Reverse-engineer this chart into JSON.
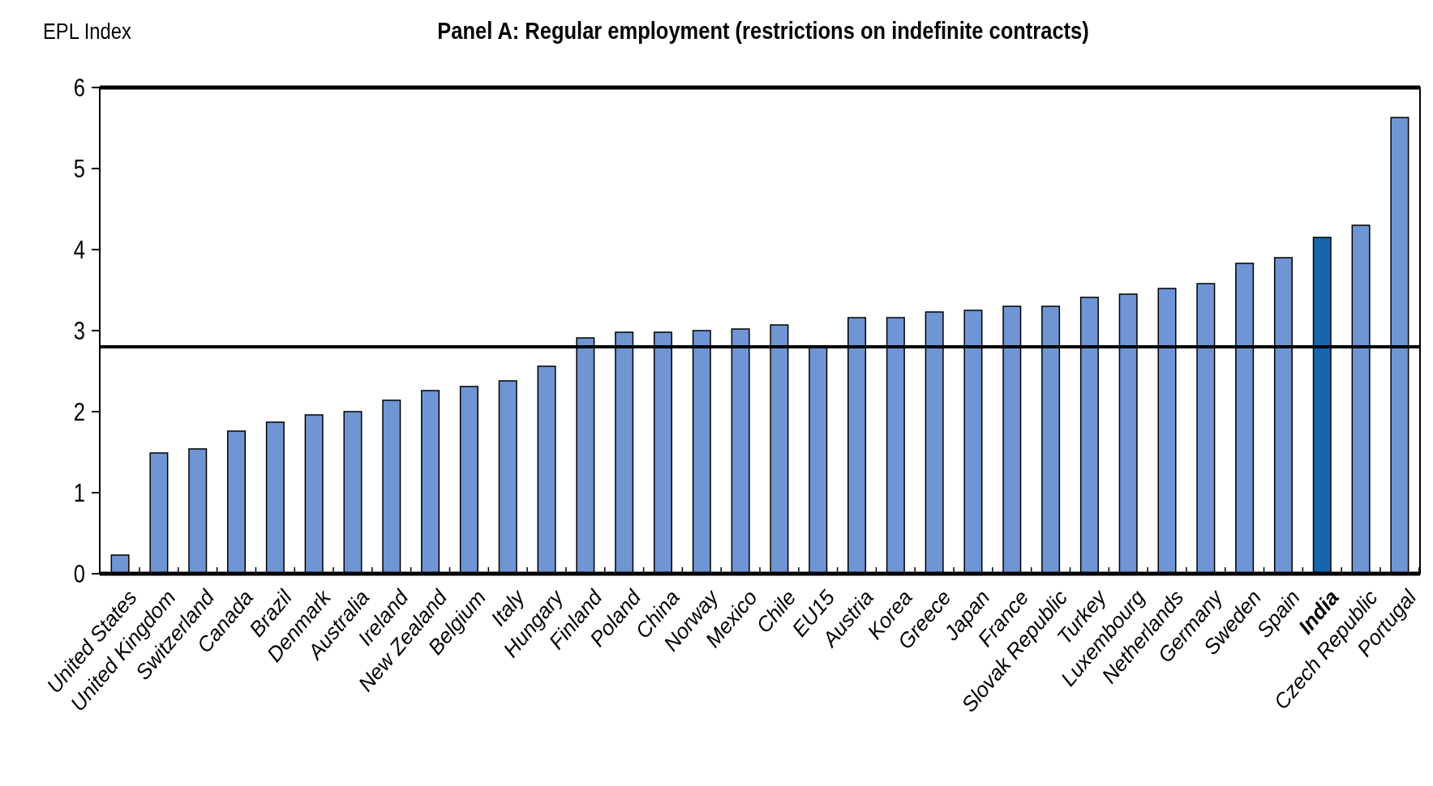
{
  "chart_data": {
    "type": "bar",
    "title": "Panel A: Regular employment (restrictions on indefinite contracts)",
    "ylabel": "EPL Index",
    "categories": [
      "United States",
      "United Kingdom",
      "Switzerland",
      "Canada",
      "Brazil",
      "Denmark",
      "Australia",
      "Ireland",
      "New Zealand",
      "Belgium",
      "Italy",
      "Hungary",
      "Finland",
      "Poland",
      "China",
      "Norway",
      "Mexico",
      "Chile",
      "EU15",
      "Austria",
      "Korea",
      "Greece",
      "Japan",
      "France",
      "Slovak Republic",
      "Turkey",
      "Luxembourg",
      "Netherlands",
      "Germany",
      "Sweden",
      "Spain",
      "India",
      "Czech Republic",
      "Portugal"
    ],
    "values": [
      0.23,
      1.49,
      1.54,
      1.76,
      1.87,
      1.96,
      2.0,
      2.14,
      2.26,
      2.31,
      2.38,
      2.56,
      2.91,
      2.98,
      2.98,
      3.0,
      3.02,
      3.07,
      2.8,
      3.16,
      3.16,
      3.23,
      3.25,
      3.3,
      3.3,
      3.41,
      3.45,
      3.52,
      3.58,
      3.83,
      3.9,
      4.15,
      4.3,
      5.63
    ],
    "colors": [
      "#6f95d4",
      "#6f95d4",
      "#6f95d4",
      "#6f95d4",
      "#6f95d4",
      "#6f95d4",
      "#6f95d4",
      "#6f95d4",
      "#6f95d4",
      "#6f95d4",
      "#6f95d4",
      "#6f95d4",
      "#6f95d4",
      "#6f95d4",
      "#6f95d4",
      "#6f95d4",
      "#6f95d4",
      "#6f95d4",
      "#6f95d4",
      "#6f95d4",
      "#6f95d4",
      "#6f95d4",
      "#6f95d4",
      "#6f95d4",
      "#6f95d4",
      "#6f95d4",
      "#6f95d4",
      "#6f95d4",
      "#6f95d4",
      "#6f95d4",
      "#6f95d4",
      "#1565b0",
      "#6f95d4",
      "#6f95d4"
    ],
    "ylim": [
      0,
      6
    ],
    "yticks": [
      0,
      1,
      2,
      3,
      4,
      5,
      6
    ],
    "ref_lines": [
      {
        "axis": "y",
        "value": 2.8,
        "color": "#000000"
      }
    ]
  }
}
